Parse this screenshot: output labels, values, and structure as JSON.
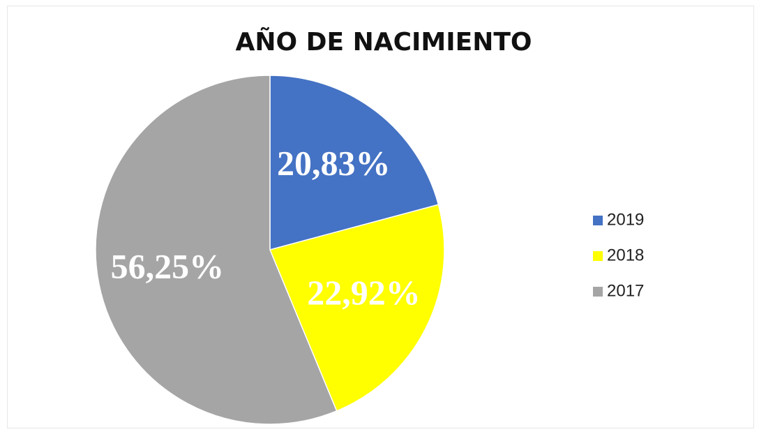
{
  "chart_data": {
    "type": "pie",
    "title": "AÑO DE NACIMIENTO",
    "categories": [
      "2019",
      "2018",
      "2017"
    ],
    "values": [
      20.83,
      22.92,
      56.25
    ],
    "value_labels": [
      "20,83%",
      "22,92%",
      "56,25%"
    ],
    "colors": [
      "#4472c4",
      "#ffff00",
      "#a5a5a5"
    ],
    "legend": "right"
  }
}
